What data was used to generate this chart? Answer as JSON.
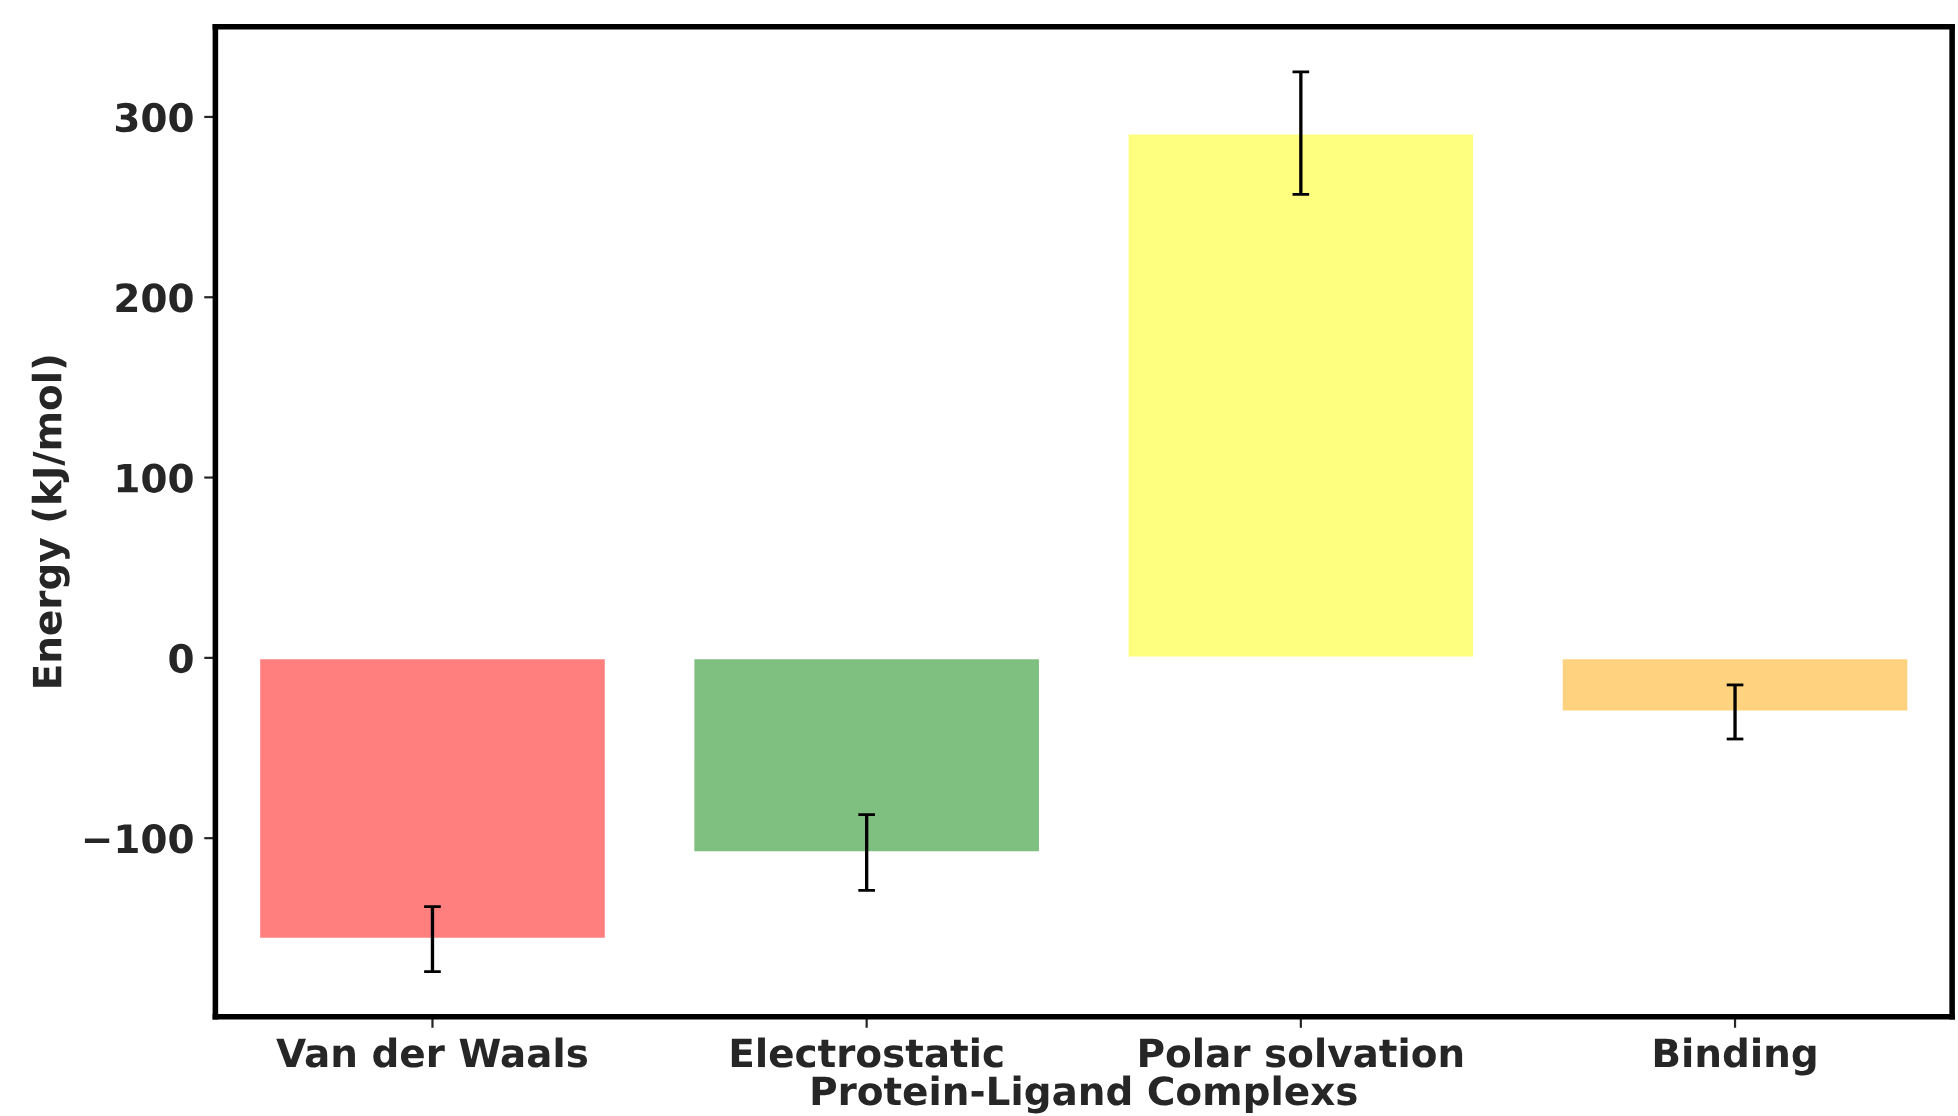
{
  "chart_data": {
    "type": "bar",
    "xlabel": "Protein-Ligand Complexs",
    "ylabel": "Energy (kJ/mol)",
    "categories": [
      "Van der Waals",
      "Electrostatic",
      "Polar solvation",
      "Binding"
    ],
    "values": [
      -156,
      -108,
      291,
      -30
    ],
    "errors": [
      18,
      21,
      34,
      15
    ],
    "colors": [
      "#ff7f7f",
      "#7fbf7f",
      "#ffff7f",
      "#ffd27f"
    ],
    "ylim": [
      -199,
      350
    ],
    "yticks": [
      -100,
      0,
      100,
      200,
      300
    ],
    "grid": false,
    "legend": false
  }
}
